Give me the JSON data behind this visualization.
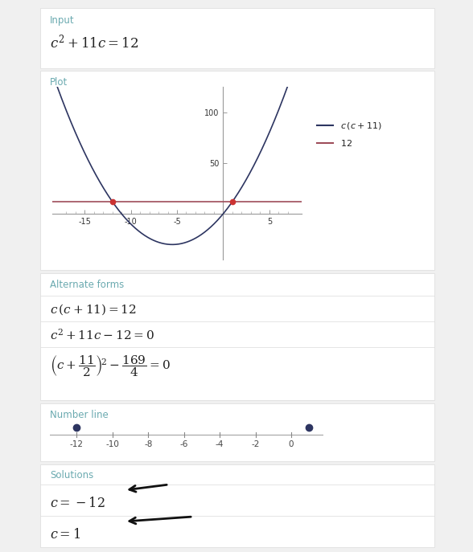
{
  "bg_color": "#f0f0f0",
  "white": "#ffffff",
  "panel_edge": "#e0e0e0",
  "section_label_color": "#6baab0",
  "text_color": "#222222",
  "dark_navy": "#2d3561",
  "red_line_color": "#9e4d5a",
  "red_dot_color": "#cc3333",
  "blue_dot_color": "#2d3561",
  "arrow_color": "#111111",
  "divider_color": "#e0e0e0",
  "legend1": "c (c + 11)",
  "legend2": "12",
  "plot_xlim": [
    -18.5,
    8.5
  ],
  "plot_ylim": [
    -45,
    125
  ],
  "plot_xticks": [
    -15,
    -10,
    -5,
    5
  ],
  "plot_yticks": [
    50,
    100
  ],
  "plot_minor_xticks": [
    -17,
    -16,
    -15,
    -14,
    -13,
    -12,
    -11,
    -10,
    -9,
    -8,
    -7,
    -6,
    -5,
    -4,
    -3,
    -2,
    -1,
    0,
    1,
    2,
    3,
    4,
    5,
    6,
    7
  ],
  "numline_ticks": [
    -12,
    -10,
    -8,
    -6,
    -4,
    -2,
    0
  ],
  "numline_dot1": -12,
  "numline_dot2": 1,
  "numline_xlim": [
    -13.5,
    1.8
  ]
}
